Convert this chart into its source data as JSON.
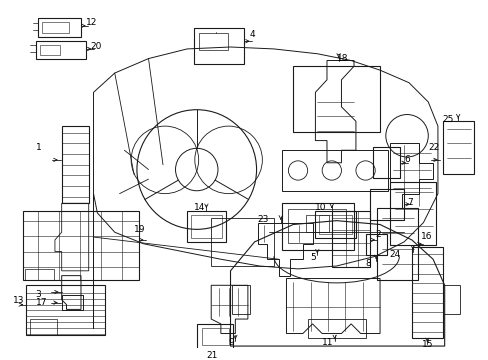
{
  "title": "",
  "background_color": "#ffffff",
  "line_color": "#1a1a1a",
  "figsize": [
    4.89,
    3.6
  ],
  "dpi": 100
}
